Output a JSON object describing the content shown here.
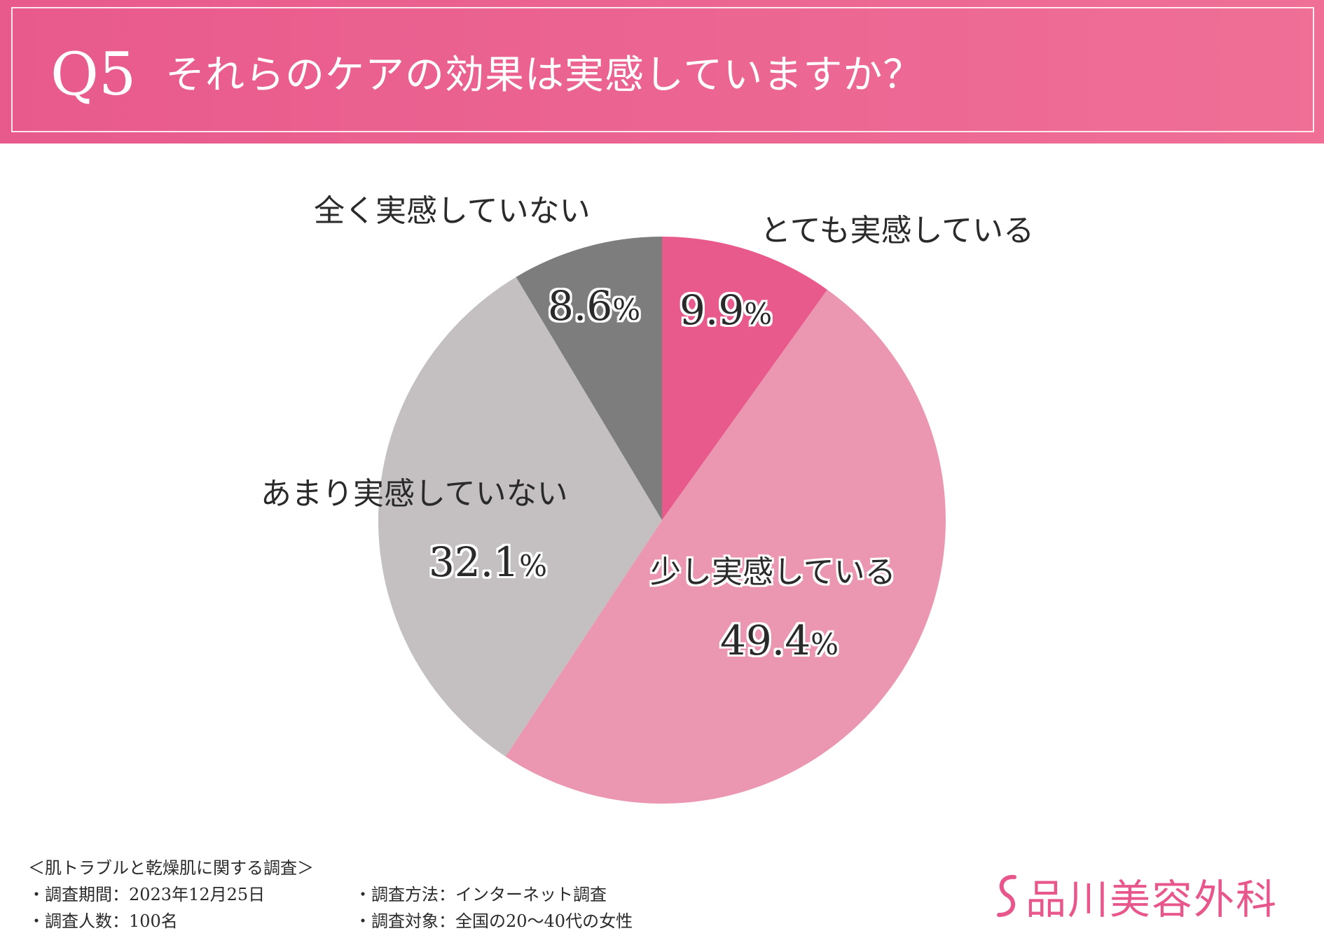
{
  "header": {
    "question_number": "Q5",
    "question_text": "それらのケアの効果は実感していますか？"
  },
  "chart_data": {
    "type": "pie",
    "title": "それらのケアの効果は実感していますか？",
    "start_angle": "12 o'clock, clockwise",
    "slices": [
      {
        "label": "とても実感している",
        "value": 9.9,
        "color": "#e85a8c"
      },
      {
        "label": "少し実感している",
        "value": 49.4,
        "color": "#eb97b1"
      },
      {
        "label": "あまり実感していない",
        "value": 32.1,
        "color": "#c4c0c2"
      },
      {
        "label": "全く実感していない",
        "value": 8.6,
        "color": "#7d7d7d"
      }
    ],
    "percent_sign": "%"
  },
  "footer": {
    "survey_title": "＜肌トラブルと乾燥肌に関する調査＞",
    "period": "・調査期間：2023年12月25日",
    "method": "・調査方法：インターネット調査",
    "respondents": "・調査人数：100名",
    "target": "・調査対象：全国の20〜40代の女性"
  },
  "logo": {
    "text": "品川美容外科",
    "color": "#e8578b"
  }
}
